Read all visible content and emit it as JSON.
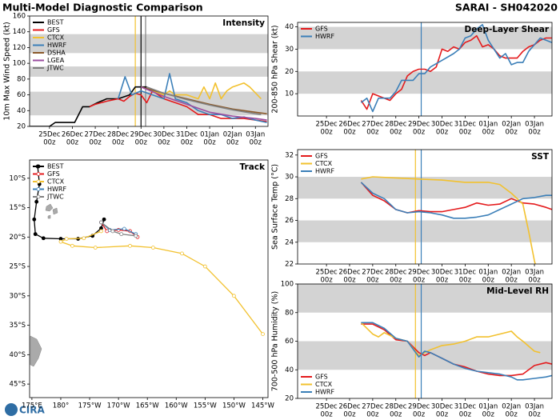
{
  "header": {
    "left": "Multi-Model Diagnostic Comparison",
    "right": "SARAI - SH042020"
  },
  "logo": "CIRA",
  "chart_data": [
    {
      "type": "line",
      "title": "Intensity",
      "ylabel": "10m Max Wind Speed (kt)",
      "legend": "upper left",
      "xlim": [
        -0.87,
        9.55
      ],
      "ylim": [
        20,
        160
      ],
      "yticks": [
        20,
        40,
        60,
        80,
        100,
        120,
        140,
        160
      ],
      "xticks": [
        {
          "value": 0,
          "label": "25Dec"
        },
        {
          "value": 1,
          "label": "26Dec"
        },
        {
          "value": 2,
          "label": "27Dec"
        },
        {
          "value": 3,
          "label": "28Dec"
        },
        {
          "value": 4,
          "label": "29Dec"
        },
        {
          "value": 5,
          "label": "30Dec"
        },
        {
          "value": 6,
          "label": "31Dec"
        },
        {
          "value": 7,
          "label": "01Jan"
        },
        {
          "value": 8,
          "label": "02Jan"
        },
        {
          "value": 9,
          "label": "03Jan"
        }
      ],
      "xtick_sublabel": "00z",
      "bands": [
        [
          34,
          64
        ],
        [
          83,
          96
        ],
        [
          113,
          137
        ]
      ],
      "vlines": [
        {
          "x": 3.75,
          "color": "#f2c12e"
        },
        {
          "x": 4,
          "color": "#000000"
        },
        {
          "x": 4.2,
          "color": "#808080"
        }
      ],
      "series": [
        {
          "name": "BEST",
          "color": "#000000",
          "x": [
            -0.85,
            0,
            0.25,
            1.1,
            1.45,
            1.75,
            2.1,
            2.5,
            3,
            3.5,
            3.75,
            4,
            4.25
          ],
          "values": [
            20,
            20,
            25,
            25,
            45,
            45,
            50,
            55,
            55,
            60,
            70,
            70,
            70
          ]
        },
        {
          "name": "GFS",
          "color": "#e41a1c",
          "x": [
            1.75,
            2,
            2.5,
            3,
            3.25,
            3.5,
            3.75,
            4,
            4.25,
            4.5,
            5,
            5.5,
            6,
            6.5,
            7,
            7.5,
            8,
            8.5,
            9,
            9.5
          ],
          "values": [
            45,
            48,
            52,
            55,
            52,
            58,
            62,
            60,
            50,
            65,
            55,
            50,
            45,
            35,
            35,
            30,
            30,
            30,
            28,
            26
          ]
        },
        {
          "name": "CTCX",
          "color": "#f2c12e",
          "x": [
            4,
            4.5,
            5,
            5.25,
            5.5,
            6,
            6.5,
            6.75,
            7,
            7.25,
            7.5,
            7.75,
            8,
            8.5,
            8.75,
            9.25
          ],
          "values": [
            70,
            65,
            60,
            65,
            60,
            60,
            55,
            70,
            55,
            75,
            55,
            65,
            70,
            75,
            70,
            55
          ]
        },
        {
          "name": "HWRF",
          "color": "#3b7fb8",
          "x": [
            3,
            3.3,
            3.6,
            4,
            4.5,
            5,
            5.25,
            5.5,
            6,
            6.5,
            7,
            7.5,
            8,
            8.5,
            9,
            9.5
          ],
          "values": [
            55,
            83,
            60,
            65,
            60,
            55,
            87,
            55,
            50,
            40,
            35,
            35,
            30,
            32,
            28,
            25
          ]
        },
        {
          "name": "DSHA",
          "color": "#8b5a2b",
          "x": [
            4,
            5,
            6,
            7,
            8,
            9,
            9.5
          ],
          "values": [
            70,
            62,
            55,
            48,
            42,
            38,
            36
          ]
        },
        {
          "name": "LGEA",
          "color": "#9b4ea0",
          "x": [
            4,
            5,
            6,
            7,
            8,
            9,
            9.5
          ],
          "values": [
            70,
            58,
            48,
            38,
            33,
            30,
            28
          ]
        },
        {
          "name": "JTWC",
          "color": "#808080",
          "x": [
            4.25,
            5,
            6,
            7,
            8,
            9,
            9.25
          ],
          "values": [
            70,
            62,
            54,
            47,
            41,
            36,
            35
          ]
        }
      ]
    },
    {
      "type": "map",
      "title": "Track",
      "legend": "upper left",
      "xlim": [
        174.6,
        215.9
      ],
      "ylim": [
        -47.3,
        -6.9
      ],
      "xticks": [
        {
          "value": 175,
          "label": "175°E"
        },
        {
          "value": 180,
          "label": "180°"
        },
        {
          "value": 185,
          "label": "175°W"
        },
        {
          "value": 190,
          "label": "170°W"
        },
        {
          "value": 195,
          "label": "165°W"
        },
        {
          "value": 200,
          "label": "160°W"
        },
        {
          "value": 205,
          "label": "155°W"
        },
        {
          "value": 210,
          "label": "150°W"
        },
        {
          "value": 215,
          "label": "145°W"
        }
      ],
      "yticks": [
        {
          "value": -10,
          "label": "10°S"
        },
        {
          "value": -15,
          "label": "15°S"
        },
        {
          "value": -20,
          "label": "20°S"
        },
        {
          "value": -25,
          "label": "25°S"
        },
        {
          "value": -30,
          "label": "30°S"
        },
        {
          "value": -35,
          "label": "35°S"
        },
        {
          "value": -40,
          "label": "40°S"
        },
        {
          "value": -45,
          "label": "45°S"
        }
      ],
      "series": [
        {
          "name": "BEST",
          "color": "#000000",
          "x": [
            176,
            176.3,
            175.8,
            175.4,
            175.6,
            177,
            180,
            183,
            185.5,
            187,
            187.5
          ],
          "values": [
            -8,
            -11,
            -14,
            -17,
            -19.5,
            -20.2,
            -20.3,
            -20.3,
            -19.8,
            -18.5,
            -17
          ]
        },
        {
          "name": "GFS",
          "color": "#e41a1c",
          "x": [
            187,
            188,
            190,
            192,
            193.3
          ],
          "values": [
            -17.5,
            -19,
            -18.8,
            -19,
            -20
          ]
        },
        {
          "name": "CTCX",
          "color": "#f2c12e",
          "x": [
            187,
            184,
            181,
            180,
            182,
            186,
            192,
            196,
            201,
            205,
            210,
            215
          ],
          "values": [
            -19,
            -20.2,
            -20.3,
            -20.8,
            -21.5,
            -21.8,
            -21.5,
            -21.8,
            -22.8,
            -25,
            -30,
            -36.5
          ]
        },
        {
          "name": "HWRF",
          "color": "#3b7fb8",
          "x": [
            187,
            188.5,
            191,
            193
          ],
          "values": [
            -17.5,
            -18.8,
            -18.6,
            -19.5
          ]
        },
        {
          "name": "JTWC",
          "color": "#808080",
          "x": [
            187,
            189,
            190.5,
            193
          ],
          "values": [
            -17.5,
            -19,
            -19.5,
            -19.8
          ]
        }
      ]
    },
    {
      "type": "line",
      "title": "Deep-Layer Shear",
      "ylabel": "200-850 hPa Shear (kt)",
      "legend": "upper left",
      "xlim": [
        -1.25,
        9.76
      ],
      "ylim": [
        0,
        42
      ],
      "yticks": [
        10,
        20,
        30,
        40
      ],
      "xticks": [
        {
          "value": 0,
          "label": "25Dec"
        },
        {
          "value": 1,
          "label": "26Dec"
        },
        {
          "value": 2,
          "label": "27Dec"
        },
        {
          "value": 3,
          "label": "28Dec"
        },
        {
          "value": 4,
          "label": "29Dec"
        },
        {
          "value": 5,
          "label": "30Dec"
        },
        {
          "value": 6,
          "label": "31Dec"
        },
        {
          "value": 7,
          "label": "01Jan"
        },
        {
          "value": 8,
          "label": "02Jan"
        },
        {
          "value": 9,
          "label": "03Jan"
        }
      ],
      "xtick_sublabel": "00z",
      "bands": [
        [
          10,
          20
        ],
        [
          30,
          40
        ]
      ],
      "vlines": [
        {
          "x": 4.1,
          "color": "#3b7fb8"
        }
      ],
      "series": [
        {
          "name": "GFS",
          "color": "#e41a1c",
          "x": [
            1.5,
            1.75,
            2,
            2.5,
            2.75,
            3,
            3.25,
            3.5,
            3.75,
            4,
            4.25,
            4.5,
            4.75,
            5,
            5.25,
            5.5,
            5.75,
            6,
            6.25,
            6.5,
            6.75,
            7,
            7.25,
            7.5,
            7.75,
            8,
            8.25,
            8.5,
            8.75,
            9,
            9.25,
            9.5,
            9.75
          ],
          "values": [
            7,
            3,
            10,
            8,
            7,
            10,
            12,
            18,
            20,
            21,
            21,
            20,
            22,
            30,
            29,
            31,
            30,
            33,
            34,
            36,
            31,
            32,
            30,
            27,
            26,
            26,
            26,
            29,
            31,
            32,
            34,
            35,
            35
          ]
        },
        {
          "name": "HWRF",
          "color": "#3b7fb8",
          "x": [
            1.5,
            1.75,
            2,
            2.25,
            2.75,
            3,
            3.25,
            3.5,
            3.75,
            4,
            4.25,
            4.5,
            5,
            5.5,
            5.75,
            6,
            6.25,
            6.5,
            6.75,
            7,
            7.25,
            7.5,
            7.75,
            8,
            8.25,
            8.5,
            8.75,
            9,
            9.25,
            9.5,
            9.75
          ],
          "values": [
            6,
            8,
            2,
            8,
            8,
            11,
            16,
            16,
            16,
            19,
            19,
            22,
            25,
            28,
            30,
            35,
            36,
            39,
            41,
            34,
            30,
            26,
            28,
            23,
            24,
            24,
            29,
            32,
            35,
            34,
            33
          ]
        }
      ]
    },
    {
      "type": "line",
      "title": "SST",
      "ylabel": "Sea Surface Temp (°C)",
      "legend": "upper left",
      "xlim": [
        -1.25,
        9.76
      ],
      "ylim": [
        22,
        32.5
      ],
      "yticks": [
        22,
        24,
        26,
        28,
        30,
        32
      ],
      "xticks": [
        {
          "value": 0,
          "label": "25Dec"
        },
        {
          "value": 1,
          "label": "26Dec"
        },
        {
          "value": 2,
          "label": "27Dec"
        },
        {
          "value": 3,
          "label": "28Dec"
        },
        {
          "value": 4,
          "label": "29Dec"
        },
        {
          "value": 5,
          "label": "30Dec"
        },
        {
          "value": 6,
          "label": "31Dec"
        },
        {
          "value": 7,
          "label": "01Jan"
        },
        {
          "value": 8,
          "label": "02Jan"
        },
        {
          "value": 9,
          "label": "03Jan"
        }
      ],
      "xtick_sublabel": "00z",
      "bands": [
        [
          24,
          26
        ],
        [
          28,
          30
        ]
      ],
      "vlines": [
        {
          "x": 3.85,
          "color": "#f2c12e"
        },
        {
          "x": 4.1,
          "color": "#3b7fb8"
        }
      ],
      "series": [
        {
          "name": "GFS",
          "color": "#e41a1c",
          "x": [
            1.5,
            2,
            2.5,
            3,
            3.5,
            4,
            4.5,
            5,
            5.5,
            6,
            6.5,
            7,
            7.5,
            8,
            8.5,
            9,
            9.5,
            9.76
          ],
          "values": [
            29.5,
            28.3,
            27.8,
            27,
            26.7,
            26.9,
            26.8,
            26.8,
            27,
            27.2,
            27.6,
            27.4,
            27.5,
            28,
            27.6,
            27.5,
            27.2,
            27
          ]
        },
        {
          "name": "CTCX",
          "color": "#f2c12e",
          "x": [
            1.5,
            2,
            3,
            4,
            5,
            6,
            7,
            7.5,
            8,
            8.5,
            8.75,
            9,
            9.1
          ],
          "values": [
            29.8,
            30,
            29.9,
            29.8,
            29.7,
            29.5,
            29.5,
            29.3,
            28.5,
            27.5,
            25,
            22.3,
            21.5
          ]
        },
        {
          "name": "HWRF",
          "color": "#3b7fb8",
          "x": [
            1.5,
            2,
            2.5,
            3,
            3.5,
            4,
            4.5,
            5,
            5.5,
            6,
            6.5,
            7,
            7.5,
            8,
            8.5,
            9,
            9.5,
            9.76
          ],
          "values": [
            29.5,
            28.5,
            28,
            27,
            26.7,
            26.8,
            26.7,
            26.5,
            26.2,
            26.2,
            26.3,
            26.5,
            27,
            27.5,
            28,
            28.1,
            28.3,
            28.3
          ]
        }
      ]
    },
    {
      "type": "line",
      "title": "Mid-Level RH",
      "ylabel": "700-500 hPa Humidity (%)",
      "legend": "lower left",
      "xlim": [
        -1.25,
        9.76
      ],
      "ylim": [
        20,
        100
      ],
      "yticks": [
        20,
        40,
        60,
        80,
        100
      ],
      "xticks": [
        {
          "value": 0,
          "label": "25Dec"
        },
        {
          "value": 1,
          "label": "26Dec"
        },
        {
          "value": 2,
          "label": "27Dec"
        },
        {
          "value": 3,
          "label": "28Dec"
        },
        {
          "value": 4,
          "label": "29Dec"
        },
        {
          "value": 5,
          "label": "30Dec"
        },
        {
          "value": 6,
          "label": "31Dec"
        },
        {
          "value": 7,
          "label": "01Jan"
        },
        {
          "value": 8,
          "label": "02Jan"
        },
        {
          "value": 9,
          "label": "03Jan"
        }
      ],
      "xtick_sublabel": "00z",
      "bands": [
        [
          40,
          60
        ],
        [
          80,
          100
        ]
      ],
      "vlines": [
        {
          "x": 3.85,
          "color": "#f2c12e"
        },
        {
          "x": 4.1,
          "color": "#3b7fb8"
        }
      ],
      "series": [
        {
          "name": "GFS",
          "color": "#e41a1c",
          "x": [
            1.5,
            2,
            2.5,
            3,
            3.5,
            4,
            4.25,
            4.5,
            5,
            5.5,
            6,
            6.5,
            7,
            7.5,
            8,
            8.5,
            9,
            9.5,
            9.76
          ],
          "values": [
            72,
            72,
            68,
            61,
            60,
            52,
            50,
            52,
            48,
            44,
            42,
            39,
            37,
            36,
            36,
            37,
            43,
            45,
            44
          ]
        },
        {
          "name": "CTCX",
          "color": "#f2c12e",
          "x": [
            1.5,
            2,
            2.25,
            2.5,
            3,
            3.5,
            4,
            4.5,
            5,
            5.5,
            6,
            6.5,
            7,
            7.5,
            8,
            8.25,
            8.5,
            9,
            9.25
          ],
          "values": [
            73,
            65,
            63,
            66,
            62,
            60,
            50,
            54,
            57,
            58,
            60,
            63,
            63,
            65,
            67,
            63,
            60,
            53,
            52
          ]
        },
        {
          "name": "HWRF",
          "color": "#3b7fb8",
          "x": [
            1.5,
            2,
            2.5,
            3,
            3.5,
            4,
            4.25,
            4.5,
            5,
            5.5,
            6,
            6.5,
            7,
            7.5,
            8,
            8.25,
            8.5,
            9,
            9.5,
            9.76
          ],
          "values": [
            73,
            73,
            69,
            62,
            60,
            49,
            53,
            52,
            48,
            44,
            41,
            39,
            38,
            37,
            35,
            33,
            33,
            34,
            35,
            36
          ]
        }
      ]
    }
  ]
}
